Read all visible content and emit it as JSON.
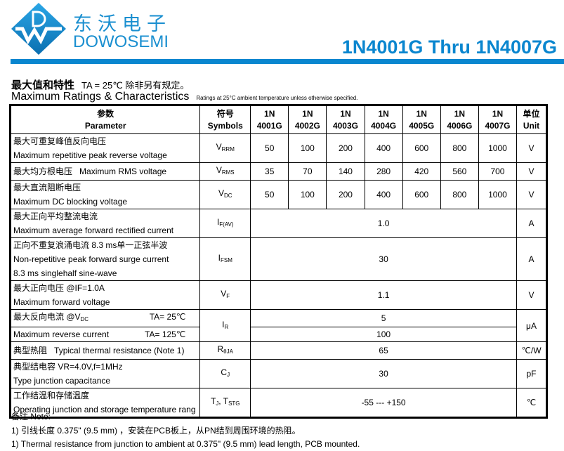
{
  "header": {
    "brand_cn": "东沃电子",
    "brand_en": "DOWOSEMI",
    "title": "1N4001G Thru 1N4007G",
    "brand_color": "#0a86cf"
  },
  "section": {
    "title_cn": "最大值和特性",
    "cond_cn": "TA = 25℃  除非另有规定。",
    "title_en": "Maximum Ratings & Characteristics",
    "cond_en": "Ratings at 25°C ambient temperature unless otherwise specified."
  },
  "table": {
    "headers": {
      "param_cn": "参数",
      "param_en": "Parameter",
      "sym_cn": "符号",
      "sym_en": "Symbols",
      "unit_cn": "单位",
      "unit_en": "Unit",
      "parts": [
        [
          "1N",
          "4001G"
        ],
        [
          "1N",
          "4002G"
        ],
        [
          "1N",
          "4003G"
        ],
        [
          "1N",
          "4004G"
        ],
        [
          "1N",
          "4005G"
        ],
        [
          "1N",
          "4006G"
        ],
        [
          "1N",
          "4007G"
        ]
      ]
    },
    "rows": [
      {
        "cn": "最大可重复峰值反向电压",
        "en": "Maximum repetitive peak reverse voltage",
        "sym": "V",
        "sub": "RRM",
        "values": [
          "50",
          "100",
          "200",
          "400",
          "600",
          "800",
          "1000"
        ],
        "unit": "V"
      },
      {
        "cn": "最大均方根电压",
        "en": "Maximum RMS voltage",
        "sym": "V",
        "sub": "RMS",
        "values": [
          "35",
          "70",
          "140",
          "280",
          "420",
          "560",
          "700"
        ],
        "unit": "V"
      },
      {
        "cn": "最大直流阻断电压",
        "en": "Maximum DC blocking voltage",
        "sym": "V",
        "sub": "DC",
        "values": [
          "50",
          "100",
          "200",
          "400",
          "600",
          "800",
          "1000"
        ],
        "unit": "V"
      },
      {
        "cn": "最大正向平均整流电流",
        "en": "Maximum average forward rectified current",
        "sym": "I",
        "sub": "F(AV)",
        "value": "1.0",
        "unit": "A"
      },
      {
        "cn": "正向不重复浪涌电流 8.3 ms单一正弦半波",
        "en": "Non-repetitive peak forward surge current",
        "en2": "8.3 ms singlehalf sine-wave",
        "sym": "I",
        "sub": "FSM",
        "value": "30",
        "unit": "A"
      },
      {
        "cn": "最大正向电压    @IF=1.0A",
        "en": "Maximum forward voltage",
        "sym": "V",
        "sub": "F",
        "value": "1.1",
        "unit": "V"
      },
      {
        "cn": "最大反向电流    @V",
        "cn_sub": "DC",
        "en": "Maximum reverse current",
        "ta1": "TA= 25℃",
        "ta2": "TA= 125℃",
        "sym": "I",
        "sub": "R",
        "value1": "5",
        "value2": "100",
        "unit": "μA"
      },
      {
        "cn": "典型热阻",
        "en": "Typical thermal resistance  (Note 1)",
        "sym": "R",
        "sub": "θJA",
        "value": "65",
        "unit": "℃/W"
      },
      {
        "cn": "典型结电容    VR=4.0V,f=1MHz",
        "en": "Type junction capacitance",
        "sym": "C",
        "sub": "J",
        "value": "30",
        "unit": "pF"
      },
      {
        "cn": "工作结温和存储温度",
        "en": "Operating junction and storage temperature rang",
        "sym": "T",
        "sub": "J",
        "sym2": ", T",
        "sub2": "STG",
        "value": "-55 --- +150",
        "unit": "℃"
      }
    ]
  },
  "notes": {
    "title": "备注  Note:",
    "cn": "1) 引线长度 0.375\" (9.5 mm) ，安装在PCB板上，从PN结到周围环境的热阻。",
    "en": "1) Thermal resistance from junction to ambient at 0.375\" (9.5 mm) lead length, PCB mounted."
  }
}
